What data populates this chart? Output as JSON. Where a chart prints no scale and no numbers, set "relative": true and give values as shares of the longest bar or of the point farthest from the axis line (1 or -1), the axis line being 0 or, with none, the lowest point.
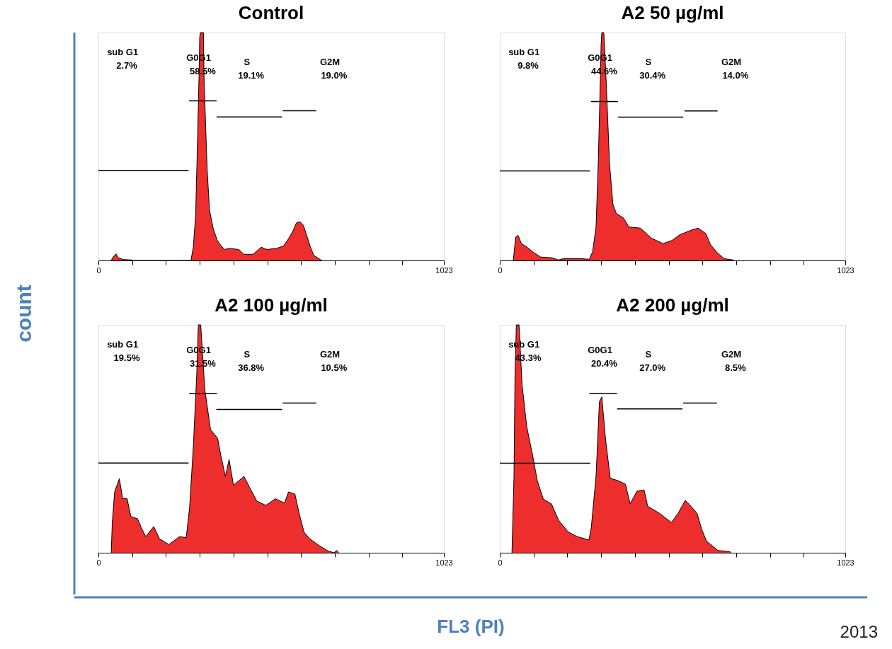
{
  "chart_data": [
    {
      "type": "area",
      "title": "Control",
      "relative": true,
      "xlim": [
        0,
        1023
      ],
      "xticks": [
        0,
        {
          "value": 100,
          "label": null
        },
        {
          "value": 200,
          "label": null
        },
        {
          "value": 300,
          "label": null
        },
        {
          "value": 400,
          "label": null
        },
        {
          "value": 500,
          "label": null
        },
        {
          "value": 600,
          "label": null
        },
        {
          "value": 700,
          "label": null
        },
        {
          "value": 800,
          "label": null
        },
        {
          "value": 900,
          "label": null
        },
        1023
      ],
      "series": [
        {
          "type": "area",
          "color": "#ee2d2d",
          "x": [
            38,
            42,
            52,
            59,
            73,
            101,
            103,
            274,
            281,
            288,
            295,
            298,
            300,
            302,
            311,
            313,
            322,
            329,
            340,
            352,
            364,
            374,
            388,
            416,
            430,
            458,
            482,
            499,
            527,
            548,
            562,
            576,
            586,
            597,
            607,
            617,
            628,
            638,
            659,
            662
          ],
          "values": [
            0,
            0.012,
            0.029,
            0.012,
            0.004,
            0.002,
            0,
            0,
            0.058,
            0.2,
            0.62,
            0.81,
            0.98,
            1,
            1,
            0.79,
            0.4,
            0.22,
            0.14,
            0.088,
            0.063,
            0.048,
            0.053,
            0.048,
            0.027,
            0.027,
            0.058,
            0.048,
            0.053,
            0.063,
            0.093,
            0.129,
            0.164,
            0.17,
            0.154,
            0.109,
            0.058,
            0.022,
            0.002,
            0
          ]
        },
        {
          "type": "line",
          "color": "#000000",
          "x": [
            0,
            267
          ],
          "values": [
            0.395,
            0.395
          ]
        },
        {
          "type": "line",
          "color": "#000000",
          "x": [
            268,
            350
          ],
          "values": [
            0.7,
            0.7
          ]
        },
        {
          "type": "line",
          "color": "#000000",
          "x": [
            350,
            544
          ],
          "values": [
            0.63,
            0.63
          ]
        },
        {
          "type": "line",
          "color": "#000000",
          "x": [
            546,
            645
          ],
          "values": [
            0.657,
            0.657
          ]
        }
      ],
      "annotations": [
        "sub G1",
        "2.7%",
        "G0G1",
        "58.5%",
        "S",
        "19.1%",
        "G2M",
        "19.0%"
      ]
    },
    {
      "type": "area",
      "title": "A2 50 µg/ml",
      "relative": true,
      "xlim": [
        0,
        1023
      ],
      "xticks": [
        0,
        {
          "value": 100,
          "label": null
        },
        {
          "value": 200,
          "label": null
        },
        {
          "value": 300,
          "label": null
        },
        {
          "value": 400,
          "label": null
        },
        {
          "value": 500,
          "label": null
        },
        {
          "value": 600,
          "label": null
        },
        {
          "value": 700,
          "label": null
        },
        {
          "value": 800,
          "label": null
        },
        {
          "value": 900,
          "label": null
        },
        1023
      ],
      "series": [
        {
          "type": "area",
          "color": "#ee2d2d",
          "x": [
            40,
            47,
            54,
            64,
            80,
            101,
            121,
            154,
            174,
            188,
            241,
            265,
            275,
            285,
            292,
            298,
            300,
            302,
            308,
            315,
            325,
            335,
            345,
            366,
            382,
            416,
            449,
            483,
            510,
            533,
            567,
            587,
            610,
            624,
            644,
            664,
            691,
            694
          ],
          "values": [
            0,
            0.103,
            0.11,
            0.074,
            0.059,
            0.034,
            0.015,
            0.012,
            0.002,
            0.008,
            0.008,
            0.005,
            0.039,
            0.147,
            0.452,
            0.815,
            0.948,
            1,
            1,
            0.786,
            0.422,
            0.246,
            0.206,
            0.187,
            0.147,
            0.142,
            0.098,
            0.074,
            0.088,
            0.113,
            0.133,
            0.142,
            0.118,
            0.069,
            0.034,
            0.008,
            0.002,
            0
          ]
        },
        {
          "type": "line",
          "color": "#000000",
          "x": [
            0,
            267
          ],
          "values": [
            0.393,
            0.393
          ]
        },
        {
          "type": "line",
          "color": "#000000",
          "x": [
            270,
            350
          ],
          "values": [
            0.697,
            0.697
          ]
        },
        {
          "type": "line",
          "color": "#000000",
          "x": [
            350,
            543
          ],
          "values": [
            0.629,
            0.629
          ]
        },
        {
          "type": "line",
          "color": "#000000",
          "x": [
            547,
            645
          ],
          "values": [
            0.656,
            0.656
          ]
        }
      ],
      "annotations": [
        "sub G1",
        "9.8%",
        "G0G1",
        "44.6%",
        "S",
        "30.4%",
        "G2M",
        "14.0%"
      ]
    },
    {
      "type": "area",
      "title": "A2 100 µg/ml",
      "relative": true,
      "xlim": [
        0,
        1023
      ],
      "xticks": [
        0,
        {
          "value": 100,
          "label": null
        },
        {
          "value": 200,
          "label": null
        },
        {
          "value": 300,
          "label": null
        },
        {
          "value": 400,
          "label": null
        },
        {
          "value": 500,
          "label": null
        },
        {
          "value": 600,
          "label": null
        },
        {
          "value": 700,
          "label": null
        },
        {
          "value": 800,
          "label": null
        },
        {
          "value": 900,
          "label": null
        },
        1023
      ],
      "series": [
        {
          "type": "area",
          "color": "#ee2d2d",
          "x": [
            38,
            41,
            48,
            62,
            72,
            85,
            96,
            116,
            127,
            140,
            164,
            181,
            209,
            240,
            260,
            270,
            281,
            291,
            296,
            303,
            315,
            332,
            353,
            363,
            376,
            387,
            400,
            431,
            448,
            469,
            496,
            524,
            551,
            563,
            582,
            595,
            609,
            626,
            654,
            681,
            698,
            705,
            712
          ],
          "values": [
            0,
            0.129,
            0.267,
            0.325,
            0.237,
            0.237,
            0.159,
            0.149,
            0.11,
            0.071,
            0.115,
            0.061,
            0.036,
            0.071,
            0.066,
            0.198,
            0.463,
            0.776,
            1,
            1,
            0.718,
            0.541,
            0.502,
            0.424,
            0.335,
            0.409,
            0.296,
            0.335,
            0.286,
            0.227,
            0.208,
            0.237,
            0.218,
            0.267,
            0.257,
            0.169,
            0.09,
            0.061,
            0.031,
            0.007,
            0,
            0.01,
            0
          ]
        },
        {
          "type": "line",
          "color": "#000000",
          "x": [
            0,
            267
          ],
          "values": [
            0.394,
            0.394
          ]
        },
        {
          "type": "line",
          "color": "#000000",
          "x": [
            269,
            351
          ],
          "values": [
            0.698,
            0.698
          ]
        },
        {
          "type": "line",
          "color": "#000000",
          "x": [
            349,
            544
          ],
          "values": [
            0.629,
            0.629
          ]
        },
        {
          "type": "line",
          "color": "#000000",
          "x": [
            546,
            645
          ],
          "values": [
            0.657,
            0.657
          ]
        }
      ],
      "annotations": [
        "sub G1",
        "19.5%",
        "G0G1",
        "31.5%",
        "S",
        "36.8%",
        "G2M",
        "10.5%"
      ]
    },
    {
      "type": "area",
      "title": "A2 200 µg/ml",
      "relative": true,
      "xlim": [
        0,
        1023
      ],
      "xticks": [
        0,
        {
          "value": 100,
          "label": null
        },
        {
          "value": 200,
          "label": null
        },
        {
          "value": 300,
          "label": null
        },
        {
          "value": 400,
          "label": null
        },
        {
          "value": 500,
          "label": null
        },
        {
          "value": 600,
          "label": null
        },
        {
          "value": 700,
          "label": null
        },
        {
          "value": 800,
          "label": null
        },
        {
          "value": 900,
          "label": null
        },
        1023
      ],
      "series": [
        {
          "type": "area",
          "color": "#ee2d2d",
          "x": [
            36,
            42,
            45,
            49,
            57,
            66,
            80,
            97,
            111,
            129,
            153,
            174,
            202,
            229,
            264,
            271,
            285,
            295,
            302,
            313,
            327,
            351,
            372,
            386,
            406,
            427,
            438,
            473,
            508,
            528,
            549,
            566,
            584,
            598,
            612,
            646,
            681,
            685
          ],
          "values": [
            0,
            0.337,
            0.776,
            1,
            1,
            0.735,
            0.551,
            0.429,
            0.316,
            0.235,
            0.214,
            0.143,
            0.092,
            0.071,
            0.056,
            0.112,
            0.337,
            0.663,
            0.684,
            0.5,
            0.327,
            0.316,
            0.301,
            0.214,
            0.27,
            0.276,
            0.204,
            0.173,
            0.133,
            0.173,
            0.23,
            0.204,
            0.173,
            0.102,
            0.051,
            0.01,
            0.005,
            0
          ]
        },
        {
          "type": "line",
          "color": "#000000",
          "x": [
            0,
            268
          ],
          "values": [
            0.393,
            0.393
          ]
        },
        {
          "type": "line",
          "color": "#000000",
          "x": [
            265,
            347
          ],
          "values": [
            0.699,
            0.699
          ]
        },
        {
          "type": "line",
          "color": "#000000",
          "x": [
            347,
            541
          ],
          "values": [
            0.631,
            0.631
          ]
        },
        {
          "type": "line",
          "color": "#000000",
          "x": [
            543,
            643
          ],
          "values": [
            0.657,
            0.657
          ]
        }
      ],
      "annotations": [
        "sub G1",
        "43.3%",
        "G0G1",
        "20.4%",
        "S",
        "27.0%",
        "G2M",
        "8.5%"
      ]
    },
    {
      "type": "other",
      "xlabel": "FL3 (PI)",
      "ylabel": "count",
      "annotations": [
        "2013"
      ]
    }
  ]
}
